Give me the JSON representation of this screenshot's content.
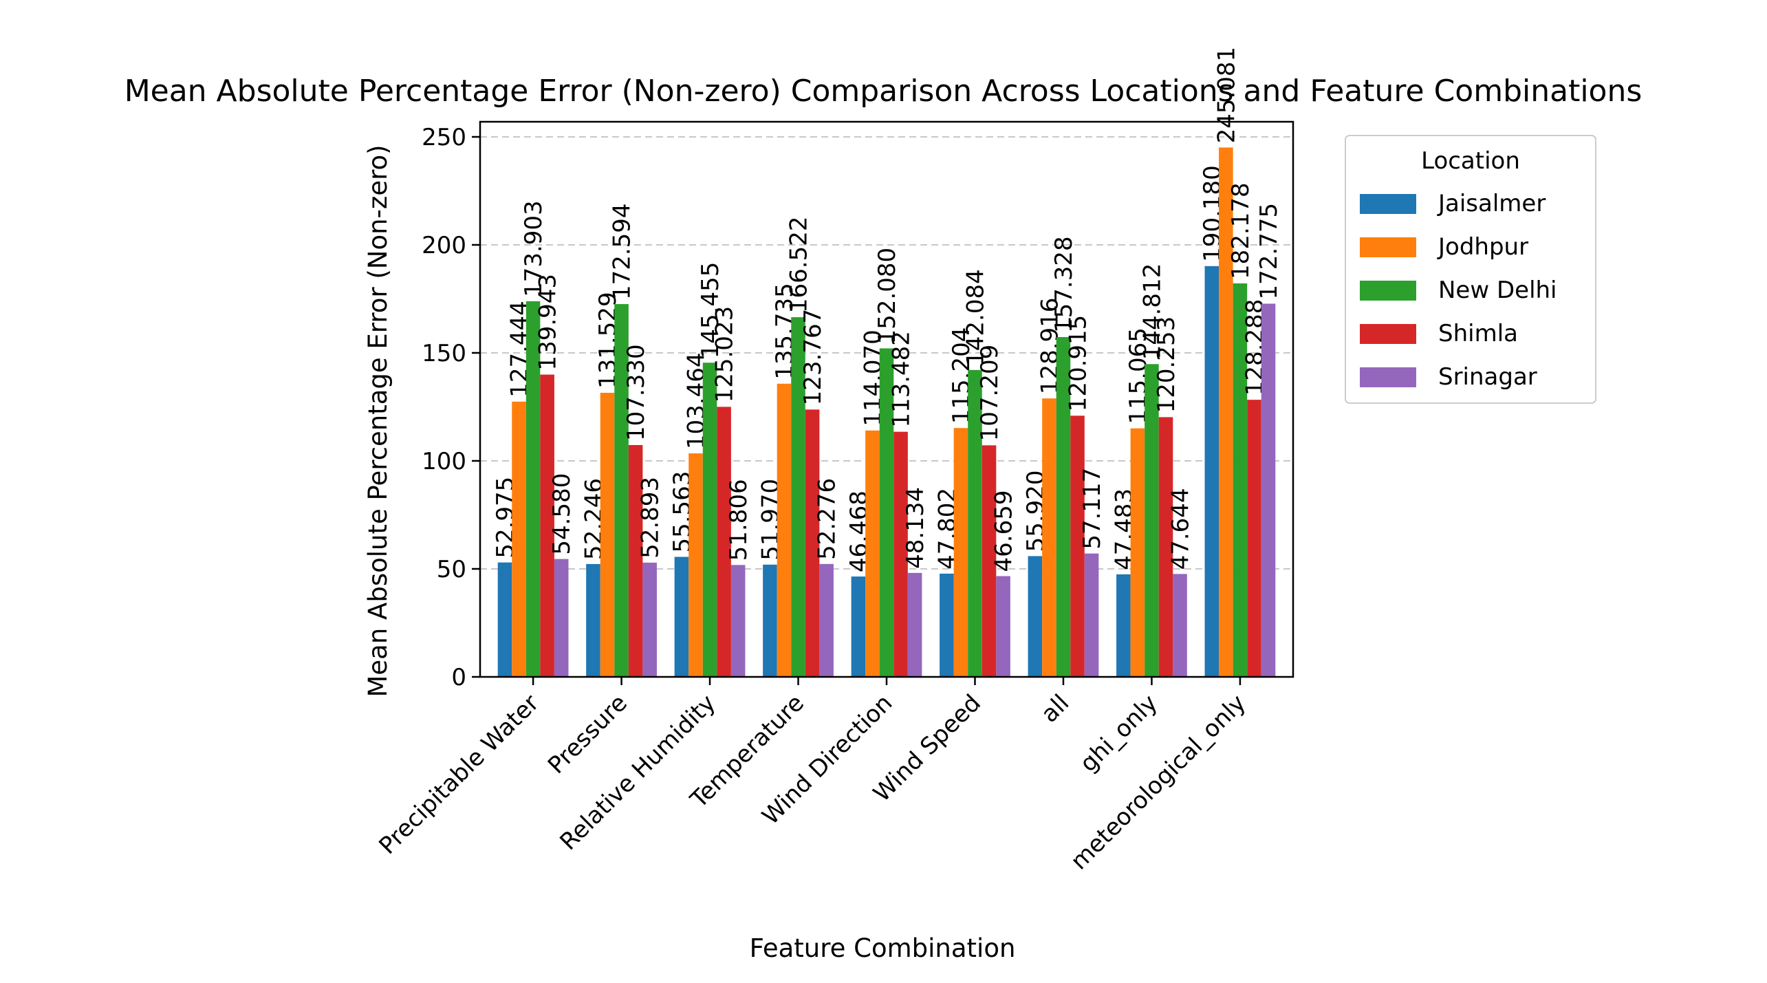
{
  "chart_data": {
    "type": "bar",
    "title": "Mean Absolute Percentage Error (Non-zero) Comparison Across Locations and Feature Combinations",
    "xlabel": "Feature Combination",
    "ylabel": "Mean Absolute Percentage Error (Non-zero)",
    "ylim": [
      0,
      257
    ],
    "yticks": [
      0,
      50,
      100,
      150,
      200,
      250
    ],
    "ytick_labels": [
      "0",
      "50",
      "100",
      "150",
      "200",
      "250"
    ],
    "grid": "horizontal dashed",
    "legend_title": "Location",
    "legend_position": "outside right, top",
    "categories": [
      "Precipitable Water",
      "Pressure",
      "Relative Humidity",
      "Temperature",
      "Wind Direction",
      "Wind Speed",
      "all",
      "ghi_only",
      "meteorological_only"
    ],
    "series": [
      {
        "name": "Jaisalmer",
        "color": "#1f77b4",
        "values": [
          52.975,
          52.246,
          55.563,
          51.97,
          46.468,
          47.802,
          55.92,
          47.483,
          190.18
        ],
        "labels": [
          "52.975",
          "52.246",
          "55.563",
          "51.970",
          "46.468",
          "47.802",
          "55.920",
          "47.483",
          "190.180"
        ]
      },
      {
        "name": "Jodhpur",
        "color": "#ff7f0e",
        "values": [
          127.444,
          131.529,
          103.464,
          135.735,
          114.07,
          115.204,
          128.916,
          115.065,
          245.081
        ],
        "labels": [
          "127.444",
          "131.529",
          "103.464",
          "135.735",
          "114.070",
          "115.204",
          "128.916",
          "115.065",
          "245.081"
        ]
      },
      {
        "name": "New Delhi",
        "color": "#2ca02c",
        "values": [
          173.903,
          172.594,
          145.455,
          166.522,
          152.08,
          142.084,
          157.328,
          144.812,
          182.178
        ],
        "labels": [
          "173.903",
          "172.594",
          "145.455",
          "166.522",
          "152.080",
          "142.084",
          "157.328",
          "144.812",
          "182.178"
        ]
      },
      {
        "name": "Shimla",
        "color": "#d62728",
        "values": [
          139.943,
          107.33,
          125.023,
          123.767,
          113.482,
          107.209,
          120.915,
          120.253,
          128.288
        ],
        "labels": [
          "139.943",
          "107.330",
          "125.023",
          "123.767",
          "113.482",
          "107.209",
          "120.915",
          "120.253",
          "128.288"
        ]
      },
      {
        "name": "Srinagar",
        "color": "#9467bd",
        "values": [
          54.58,
          52.893,
          51.806,
          52.276,
          48.134,
          46.659,
          57.117,
          47.644,
          172.775
        ],
        "labels": [
          "54.580",
          "52.893",
          "51.806",
          "52.276",
          "48.134",
          "46.659",
          "57.117",
          "47.644",
          "172.775"
        ]
      }
    ]
  }
}
